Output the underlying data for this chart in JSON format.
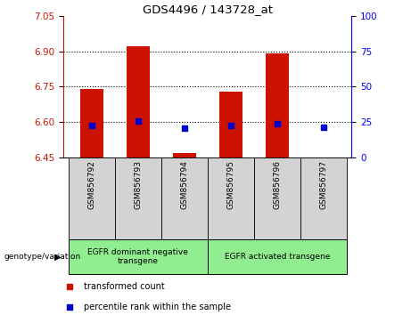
{
  "title": "GDS4496 / 143728_at",
  "samples": [
    "GSM856792",
    "GSM856793",
    "GSM856794",
    "GSM856795",
    "GSM856796",
    "GSM856797"
  ],
  "red_values": [
    6.74,
    6.92,
    6.47,
    6.73,
    6.89,
    6.45
  ],
  "blue_values": [
    6.585,
    6.605,
    6.575,
    6.585,
    6.595,
    6.577
  ],
  "ylim_left": [
    6.45,
    7.05
  ],
  "yticks_left": [
    6.45,
    6.6,
    6.75,
    6.9,
    7.05
  ],
  "yticks_right": [
    0,
    25,
    50,
    75,
    100
  ],
  "ylim_right": [
    0,
    100
  ],
  "red_color": "#cc1100",
  "blue_color": "#0000cc",
  "bar_bottom": 6.45,
  "group1_label": "EGFR dominant negative\ntransgene",
  "group2_label": "EGFR activated transgene",
  "group_color": "#90EE90",
  "sample_box_color": "#d3d3d3",
  "legend_red": "transformed count",
  "legend_blue": "percentile rank within the sample",
  "genotype_label": "genotype/variation",
  "background_color": "#ffffff",
  "plot_bg_color": "#ffffff",
  "grid_yticks": [
    6.6,
    6.75,
    6.9
  ]
}
